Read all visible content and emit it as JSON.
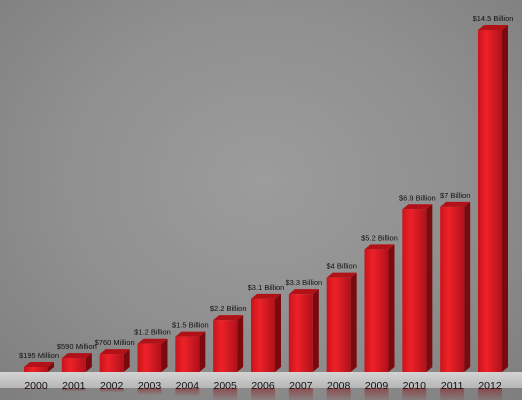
{
  "chart_data": {
    "type": "bar",
    "title": "",
    "xlabel": "",
    "ylabel": "",
    "categories": [
      "2000",
      "2001",
      "2002",
      "2003",
      "2004",
      "2005",
      "2006",
      "2007",
      "2008",
      "2009",
      "2010",
      "2011",
      "2012"
    ],
    "values": [
      0.195,
      0.59,
      0.76,
      1.2,
      1.5,
      2.2,
      3.1,
      3.3,
      4,
      5.2,
      6.9,
      7,
      14.5
    ],
    "value_labels": [
      "$195 Million",
      "$590 Million",
      "$760 Million",
      "$1.2 Billion",
      "$1.5 Billion",
      "$2.2 Billion",
      "$3.1 Billion",
      "$3.3 Billion",
      "$4 Billion",
      "$5.2 Billion",
      "$6.9 Billion",
      "$7 Billion",
      "$14.5 Billion"
    ],
    "ylim": [
      0,
      14.5
    ],
    "grid": false,
    "legend": "none",
    "colors": {
      "bar_front": "#e01b22",
      "bar_side": "#7a0a0e",
      "bar_top": "#b01218",
      "base_band": "#c9c9c9"
    }
  }
}
